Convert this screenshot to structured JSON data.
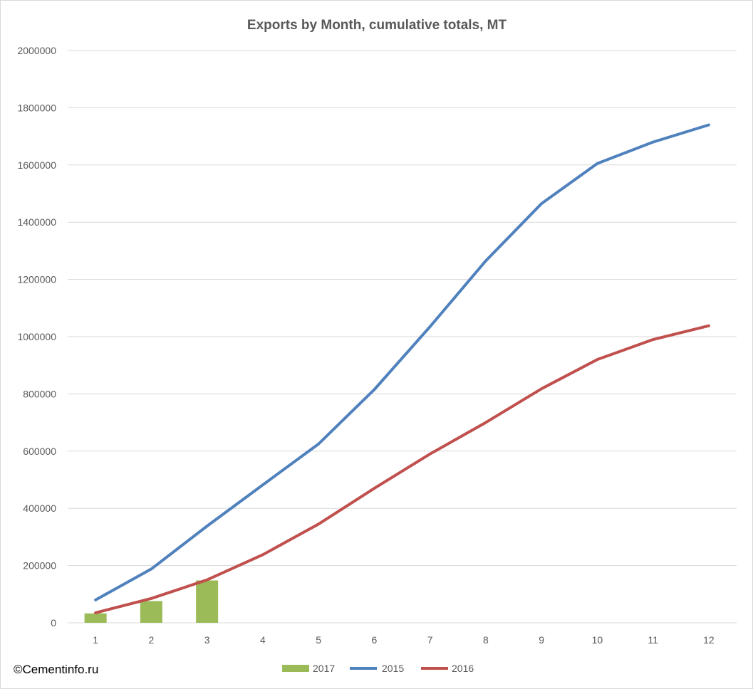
{
  "chart_data": {
    "type": "bar+line",
    "title": "Exports by Month, cumulative totals, MT",
    "categories": [
      "1",
      "2",
      "3",
      "4",
      "5",
      "6",
      "7",
      "8",
      "9",
      "10",
      "11",
      "12"
    ],
    "y_ticks": [
      "0",
      "200000",
      "400000",
      "600000",
      "800000",
      "1000000",
      "1200000",
      "1400000",
      "1600000",
      "1800000",
      "2000000"
    ],
    "ylim": [
      0,
      2000000
    ],
    "grid": "horizontal",
    "legend_position": "bottom",
    "series": [
      {
        "name": "2017",
        "type": "bar",
        "color": "#9bbb59",
        "values": [
          33000,
          76000,
          148000,
          null,
          null,
          null,
          null,
          null,
          null,
          null,
          null,
          null
        ]
      },
      {
        "name": "2015",
        "type": "line",
        "color": "#4f81bd",
        "values": [
          80000,
          188000,
          338000,
          482000,
          625000,
          815000,
          1035000,
          1265000,
          1465000,
          1605000,
          1680000,
          1740000
        ]
      },
      {
        "name": "2016",
        "type": "line",
        "color": "#c0504d",
        "values": [
          35000,
          85000,
          150000,
          238000,
          345000,
          470000,
          590000,
          700000,
          818000,
          920000,
          990000,
          1038000
        ]
      }
    ]
  },
  "credit": "©Cementinfo.ru"
}
